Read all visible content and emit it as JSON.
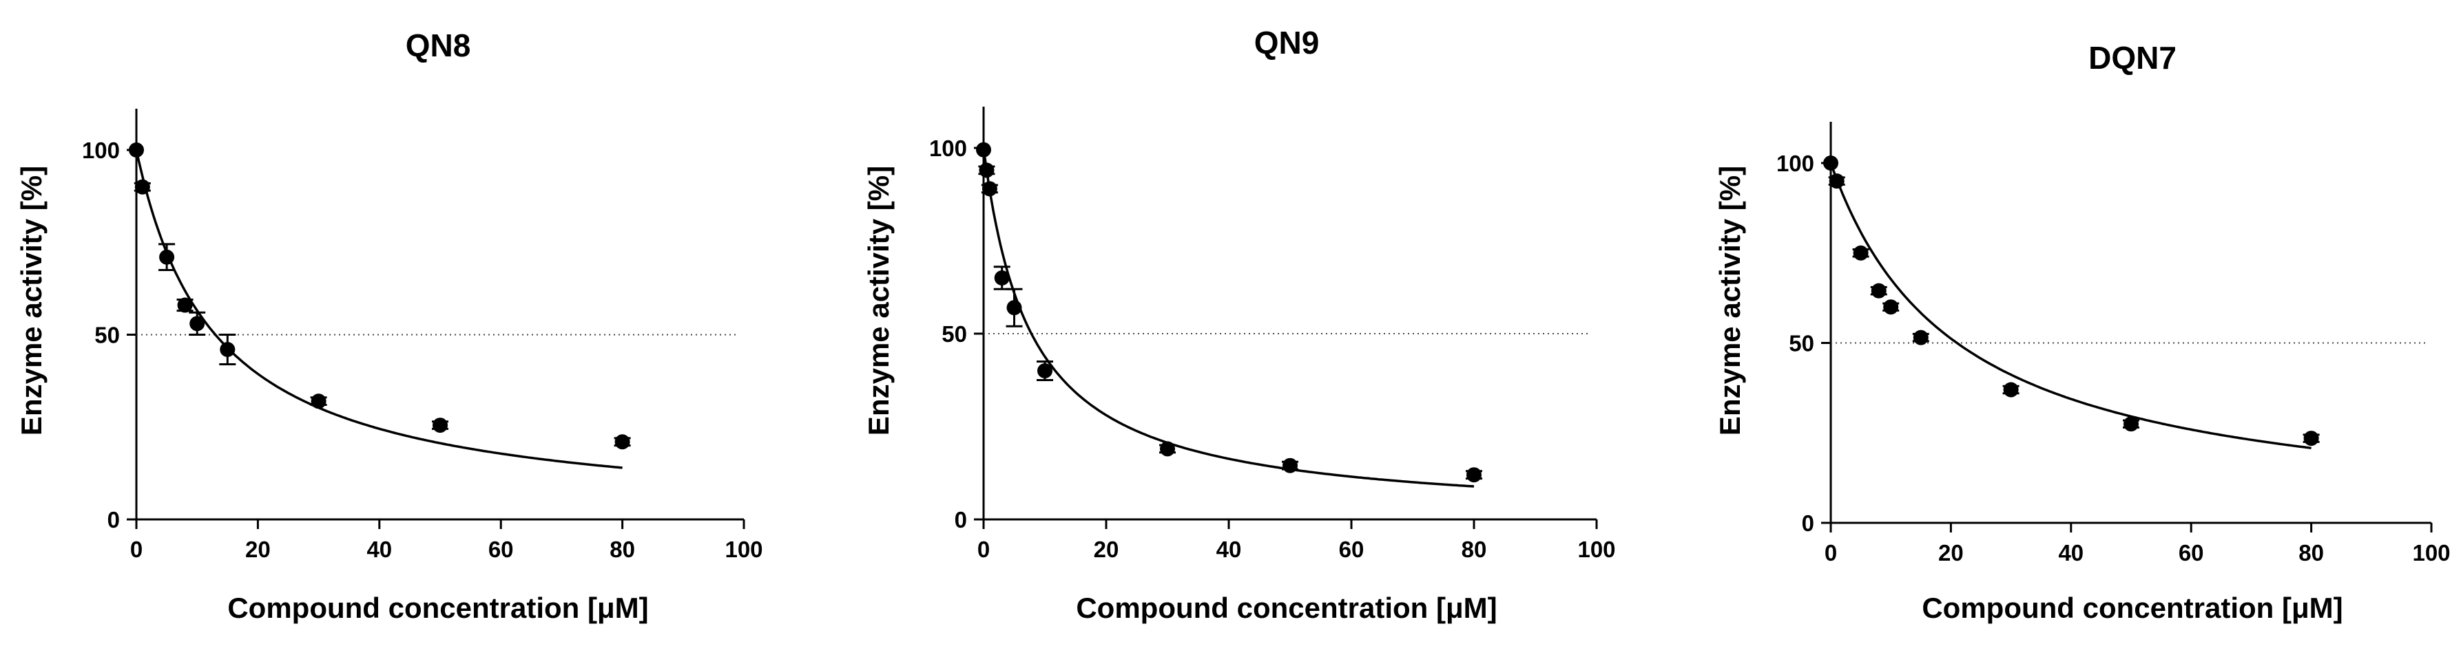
{
  "chart_data": [
    {
      "type": "scatter",
      "title": "QN8",
      "xlabel": "Compound concentration [μM]",
      "ylabel": "Enzyme activity [%]",
      "xlim": [
        0,
        100
      ],
      "ylim": [
        0,
        100
      ],
      "xticks": [
        0,
        20,
        40,
        60,
        80,
        100
      ],
      "yticks": [
        0,
        50,
        100
      ],
      "reference_line": {
        "y": 50,
        "style": "dotted"
      },
      "points": [
        {
          "x": 0,
          "y": 100,
          "err": 0
        },
        {
          "x": 1,
          "y": 90,
          "err": 1
        },
        {
          "x": 5,
          "y": 71,
          "err": 3.5
        },
        {
          "x": 8,
          "y": 58,
          "err": 1.5
        },
        {
          "x": 10,
          "y": 53,
          "err": 3
        },
        {
          "x": 15,
          "y": 46,
          "err": 4
        },
        {
          "x": 30,
          "y": 32,
          "err": 1
        },
        {
          "x": 50,
          "y": 25.5,
          "err": 1
        },
        {
          "x": 80,
          "y": 21,
          "err": 1
        }
      ],
      "fit": {
        "type": "ic50",
        "ic50": 13,
        "x_range": [
          0,
          80
        ]
      }
    },
    {
      "type": "scatter",
      "title": "QN9",
      "xlabel": "Compound concentration [μM]",
      "ylabel": "Enzyme activity [%]",
      "xlim": [
        0,
        100
      ],
      "ylim": [
        0,
        100
      ],
      "xticks": [
        0,
        20,
        40,
        60,
        80,
        100
      ],
      "yticks": [
        0,
        50,
        100
      ],
      "reference_line": {
        "y": 50,
        "style": "dotted"
      },
      "points": [
        {
          "x": 0,
          "y": 99.5,
          "err": 0
        },
        {
          "x": 0.5,
          "y": 94,
          "err": 1
        },
        {
          "x": 1,
          "y": 89,
          "err": 1
        },
        {
          "x": 3,
          "y": 65,
          "err": 3
        },
        {
          "x": 5,
          "y": 57,
          "err": 5
        },
        {
          "x": 10,
          "y": 40,
          "err": 2.5
        },
        {
          "x": 30,
          "y": 19,
          "err": 1
        },
        {
          "x": 50,
          "y": 14.5,
          "err": 1
        },
        {
          "x": 80,
          "y": 12,
          "err": 1
        }
      ],
      "fit": {
        "type": "ic50",
        "ic50": 7.8,
        "x_range": [
          0,
          80
        ]
      }
    },
    {
      "type": "scatter",
      "title": "DQN7",
      "xlabel": "Compound concentration [μM]",
      "ylabel": "Enzyme activity [%]",
      "xlim": [
        0,
        100
      ],
      "ylim": [
        0,
        100
      ],
      "xticks": [
        0,
        20,
        40,
        60,
        80,
        100
      ],
      "yticks": [
        0,
        50,
        100
      ],
      "reference_line": {
        "y": 50,
        "style": "dotted"
      },
      "points": [
        {
          "x": 0,
          "y": 100,
          "err": 0
        },
        {
          "x": 1,
          "y": 95,
          "err": 1
        },
        {
          "x": 5,
          "y": 75,
          "err": 1
        },
        {
          "x": 8,
          "y": 64.5,
          "err": 1
        },
        {
          "x": 10,
          "y": 60,
          "err": 1
        },
        {
          "x": 15,
          "y": 51.5,
          "err": 1
        },
        {
          "x": 30,
          "y": 37,
          "err": 1
        },
        {
          "x": 50,
          "y": 27.5,
          "err": 1
        },
        {
          "x": 80,
          "y": 23.5,
          "err": 1
        }
      ],
      "fit": {
        "type": "ic50",
        "ic50": 21,
        "x_range": [
          0,
          80
        ]
      }
    }
  ]
}
